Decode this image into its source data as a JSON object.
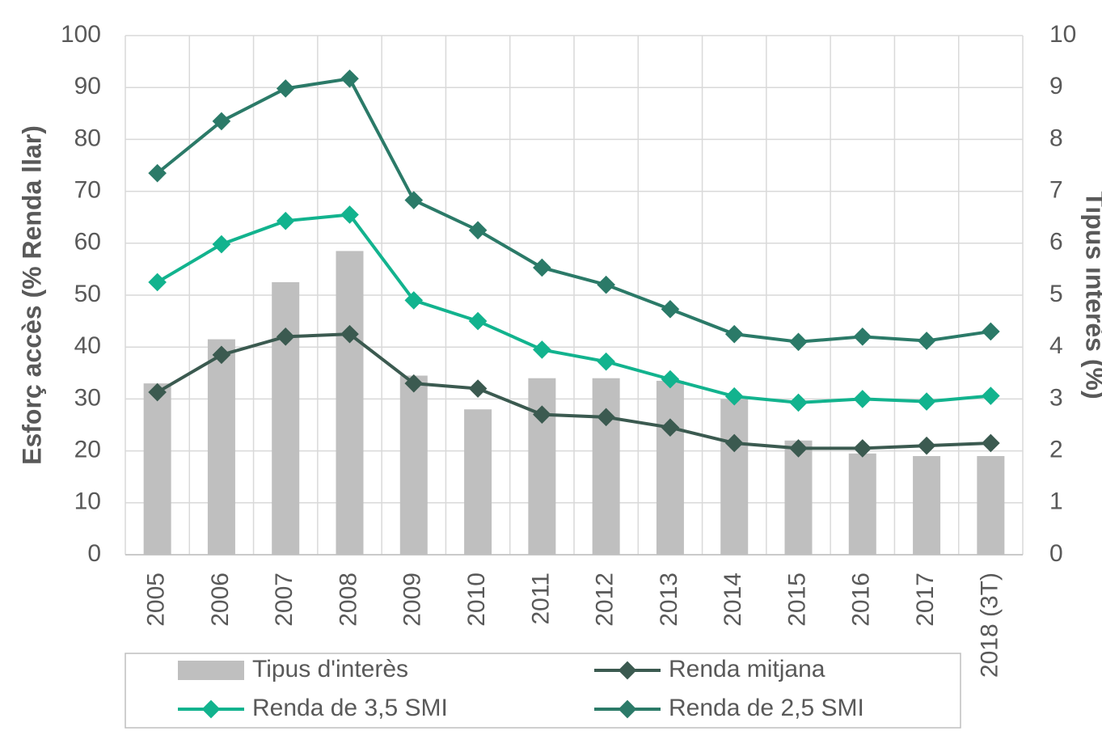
{
  "chart_data": {
    "type": "bar-line",
    "y_label": "Esforç accès (% Renda llar)",
    "y2_label": "Tipus interès (%)",
    "categories": [
      "2005",
      "2006",
      "2007",
      "2008",
      "2009",
      "2010",
      "2011",
      "2012",
      "2013",
      "2014",
      "2015",
      "2016",
      "2017",
      "2018 (3T)"
    ],
    "series": [
      {
        "name": "Tipus d'interès",
        "type": "bar",
        "axis": "y2",
        "color": "#bfbfbf",
        "values": [
          3.3,
          4.15,
          5.25,
          5.85,
          3.45,
          2.8,
          3.4,
          3.4,
          3.35,
          3.0,
          2.2,
          1.95,
          1.9,
          1.9
        ]
      },
      {
        "name": "Renda mitjana",
        "type": "line",
        "color": "#3b5a50",
        "values": [
          31.3,
          38.5,
          42,
          42.5,
          33,
          32,
          27,
          26.5,
          24.5,
          21.5,
          20.5,
          20.5,
          21,
          21.5
        ]
      },
      {
        "name": "Renda de 3,5 SMI",
        "type": "line",
        "color": "#12b38e",
        "values": [
          52.5,
          59.8,
          64.3,
          65.5,
          49,
          45,
          39.5,
          37.2,
          33.8,
          30.5,
          29.3,
          30,
          29.5,
          30.6
        ]
      },
      {
        "name": "Renda de 2,5 SMI",
        "type": "line",
        "color": "#2b7a68",
        "values": [
          73.5,
          83.5,
          89.8,
          91.7,
          68.3,
          62.5,
          55.3,
          52,
          47.3,
          42.5,
          41,
          42,
          41.2,
          43
        ]
      }
    ],
    "ylim": [
      0,
      100
    ],
    "yticks": [
      0,
      10,
      20,
      30,
      40,
      50,
      60,
      70,
      80,
      90,
      100
    ],
    "y2lim": [
      0,
      10
    ],
    "y2ticks": [
      0,
      1,
      2,
      3,
      4,
      5,
      6,
      7,
      8,
      9,
      10
    ],
    "grid": true,
    "legend": "bottom"
  }
}
